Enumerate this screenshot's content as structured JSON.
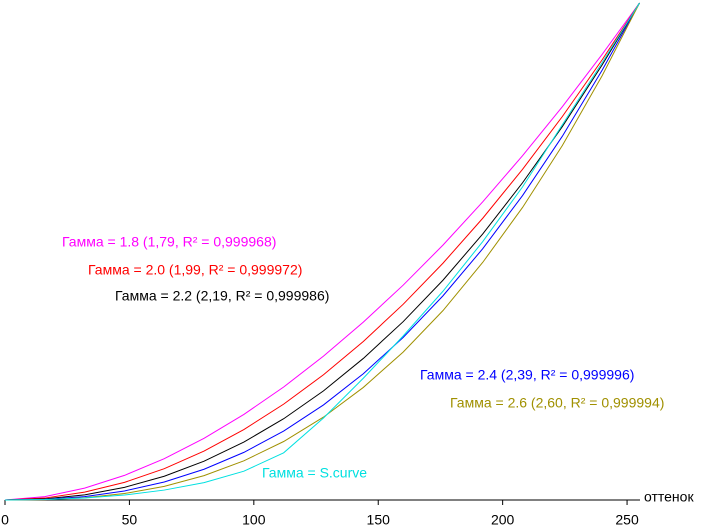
{
  "chart_data": {
    "type": "line",
    "x_label": "оттенок",
    "x": [
      0,
      16,
      32,
      48,
      64,
      80,
      96,
      112,
      128,
      144,
      160,
      176,
      192,
      208,
      224,
      240,
      255
    ],
    "xlim": [
      0,
      255
    ],
    "xticks": [
      0,
      50,
      100,
      150,
      200,
      250
    ],
    "ylim": [
      0,
      1
    ],
    "series": [
      {
        "name": "Гамма = 1.8 (1,79, R² = 0,999968)",
        "color": "#ff00ff",
        "values": [
          0,
          0.0069,
          0.0239,
          0.0495,
          0.0831,
          0.1242,
          0.1722,
          0.2274,
          0.2894,
          0.3578,
          0.4322,
          0.5128,
          0.5999,
          0.6928,
          0.7914,
          0.8967,
          1
        ]
      },
      {
        "name": "Гамма = 2.0 (1,99, R² = 0,999972)",
        "color": "#ff0000",
        "values": [
          0,
          0.0039,
          0.0158,
          0.0354,
          0.063,
          0.0984,
          0.1418,
          0.1929,
          0.252,
          0.3189,
          0.3937,
          0.4764,
          0.5669,
          0.6654,
          0.7716,
          0.8858,
          1
        ]
      },
      {
        "name": "Гамма = 2.2 (2,19, R² = 0,999986)",
        "color": "#000000",
        "values": [
          0,
          0.0023,
          0.0104,
          0.0254,
          0.0478,
          0.0781,
          0.1166,
          0.1635,
          0.2196,
          0.2848,
          0.3588,
          0.4422,
          0.5353,
          0.6383,
          0.7513,
          0.8755,
          1
        ]
      },
      {
        "name": "Гамма = 2.4 (2,39, R² = 0,999996)",
        "color": "#0000ff",
        "values": [
          0,
          0.0013,
          0.0069,
          0.0182,
          0.0363,
          0.0619,
          0.0958,
          0.1388,
          0.1913,
          0.2541,
          0.3269,
          0.4107,
          0.5056,
          0.6126,
          0.732,
          0.865,
          1
        ]
      },
      {
        "name": "Гамма = 2.6 (2,60, R² = 0,999994)",
        "color": "#a09000",
        "values": [
          0,
          0.0007,
          0.0045,
          0.013,
          0.0275,
          0.0491,
          0.0789,
          0.1177,
          0.1668,
          0.2265,
          0.2976,
          0.381,
          0.4781,
          0.5886,
          0.7132,
          0.8539,
          1
        ]
      },
      {
        "name": "Гамма = S.curve",
        "color": "#00e0e0",
        "values": [
          0,
          0.001,
          0.004,
          0.01,
          0.02,
          0.035,
          0.058,
          0.095,
          0.165,
          0.245,
          0.33,
          0.42,
          0.52,
          0.63,
          0.755,
          0.88,
          1
        ]
      }
    ]
  }
}
